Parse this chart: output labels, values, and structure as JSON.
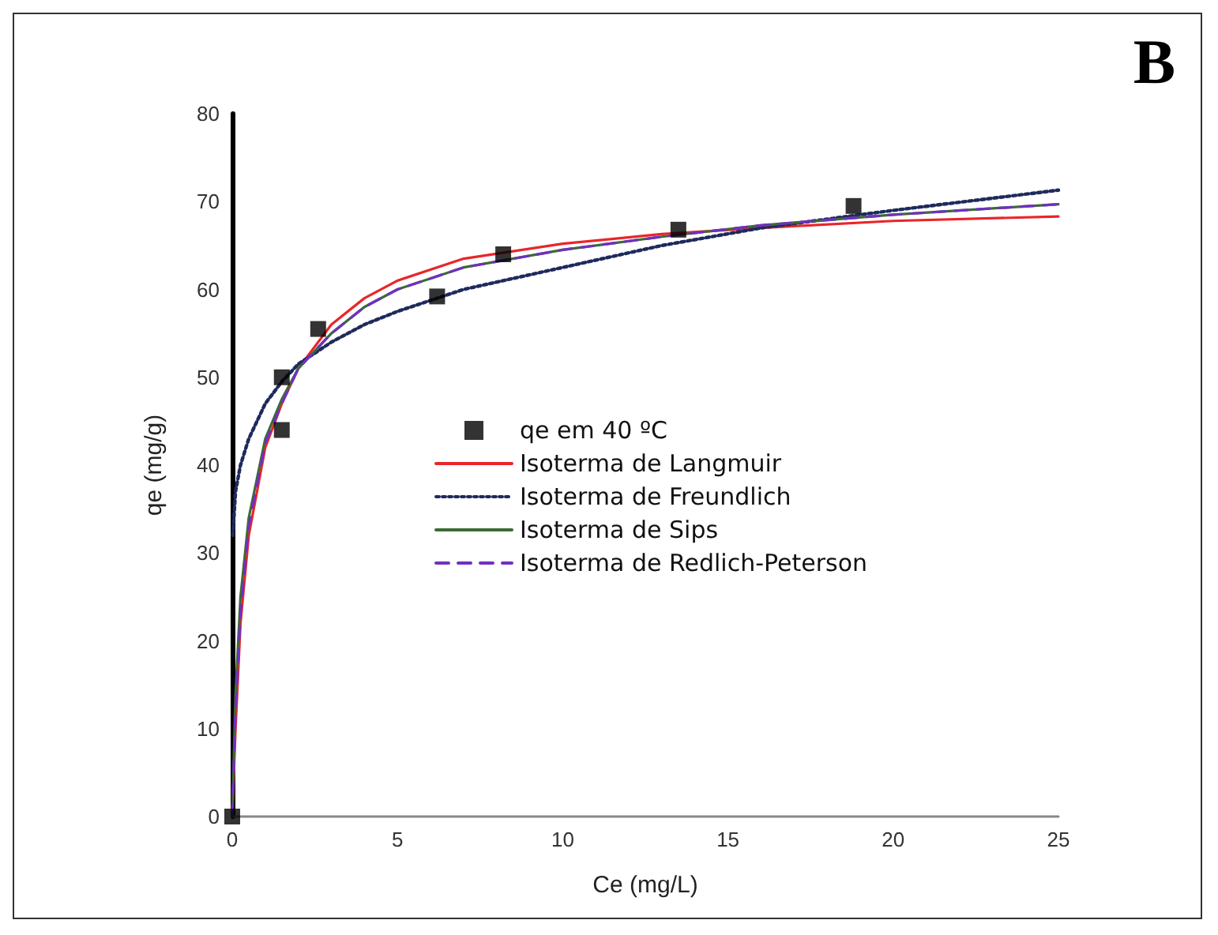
{
  "chart_data": {
    "type": "line",
    "title": "B",
    "xlabel": "Ce (mg/L)",
    "ylabel": "qe (mg/g)",
    "xlim": [
      0,
      25
    ],
    "xticks": [
      0,
      5,
      10,
      15,
      20,
      25
    ],
    "ylim": [
      0,
      80
    ],
    "yticks": [
      0,
      10,
      20,
      30,
      40,
      50,
      60,
      70,
      80
    ],
    "grid": false,
    "legend": "center",
    "series": [
      {
        "name": "qe em 40 ºC",
        "type": "scatter",
        "marker": "square",
        "color": "#000000",
        "x": [
          0,
          1.5,
          1.5,
          2.6,
          6.2,
          8.2,
          13.5,
          18.8
        ],
        "values": [
          0,
          44,
          50,
          55.5,
          59.2,
          64,
          66.8,
          69.5
        ]
      },
      {
        "name": "Isoterma de Langmuir",
        "color": "#e8262a",
        "line_style": "solid",
        "marker": "none",
        "x": [
          0,
          0.1,
          0.25,
          0.5,
          1,
          1.5,
          2,
          3,
          4,
          5,
          7,
          10,
          13,
          16,
          20,
          25
        ],
        "values": [
          0,
          10,
          22,
          32,
          42,
          47,
          51,
          56,
          59,
          61,
          63.5,
          65.2,
          66.3,
          67,
          67.8,
          68.3
        ]
      },
      {
        "name": "Isoterma de Freundlich",
        "color": "#1f2a5c",
        "line_style": "dotted",
        "marker": "none",
        "x": [
          0.02,
          0.1,
          0.25,
          0.5,
          1,
          1.5,
          2,
          3,
          4,
          5,
          7,
          10,
          13,
          16,
          20,
          25
        ],
        "values": [
          32,
          37,
          40,
          43,
          47,
          49.5,
          51.5,
          54,
          56,
          57.5,
          60,
          62.5,
          65,
          67,
          69,
          71.3
        ]
      },
      {
        "name": "Isoterma de Sips",
        "color": "#3a6b35",
        "line_style": "solid",
        "marker": "none",
        "x": [
          0,
          0.1,
          0.25,
          0.5,
          1,
          1.5,
          2,
          3,
          4,
          5,
          7,
          10,
          13,
          16,
          20,
          25
        ],
        "values": [
          0,
          14,
          25,
          34,
          43,
          47.5,
          51,
          55,
          58,
          60,
          62.5,
          64.5,
          66,
          67.3,
          68.5,
          69.7
        ]
      },
      {
        "name": "Isoterma de Redlich-Peterson",
        "color": "#7030c0",
        "line_style": "dashed",
        "marker": "none",
        "x": [
          0,
          0.1,
          0.25,
          0.5,
          1,
          1.5,
          2,
          3,
          4,
          5,
          7,
          10,
          13,
          16,
          20,
          25
        ],
        "values": [
          0,
          12,
          23,
          33,
          42.5,
          47,
          51,
          55,
          58,
          60,
          62.5,
          64.5,
          66,
          67.3,
          68.5,
          69.7
        ]
      }
    ]
  }
}
